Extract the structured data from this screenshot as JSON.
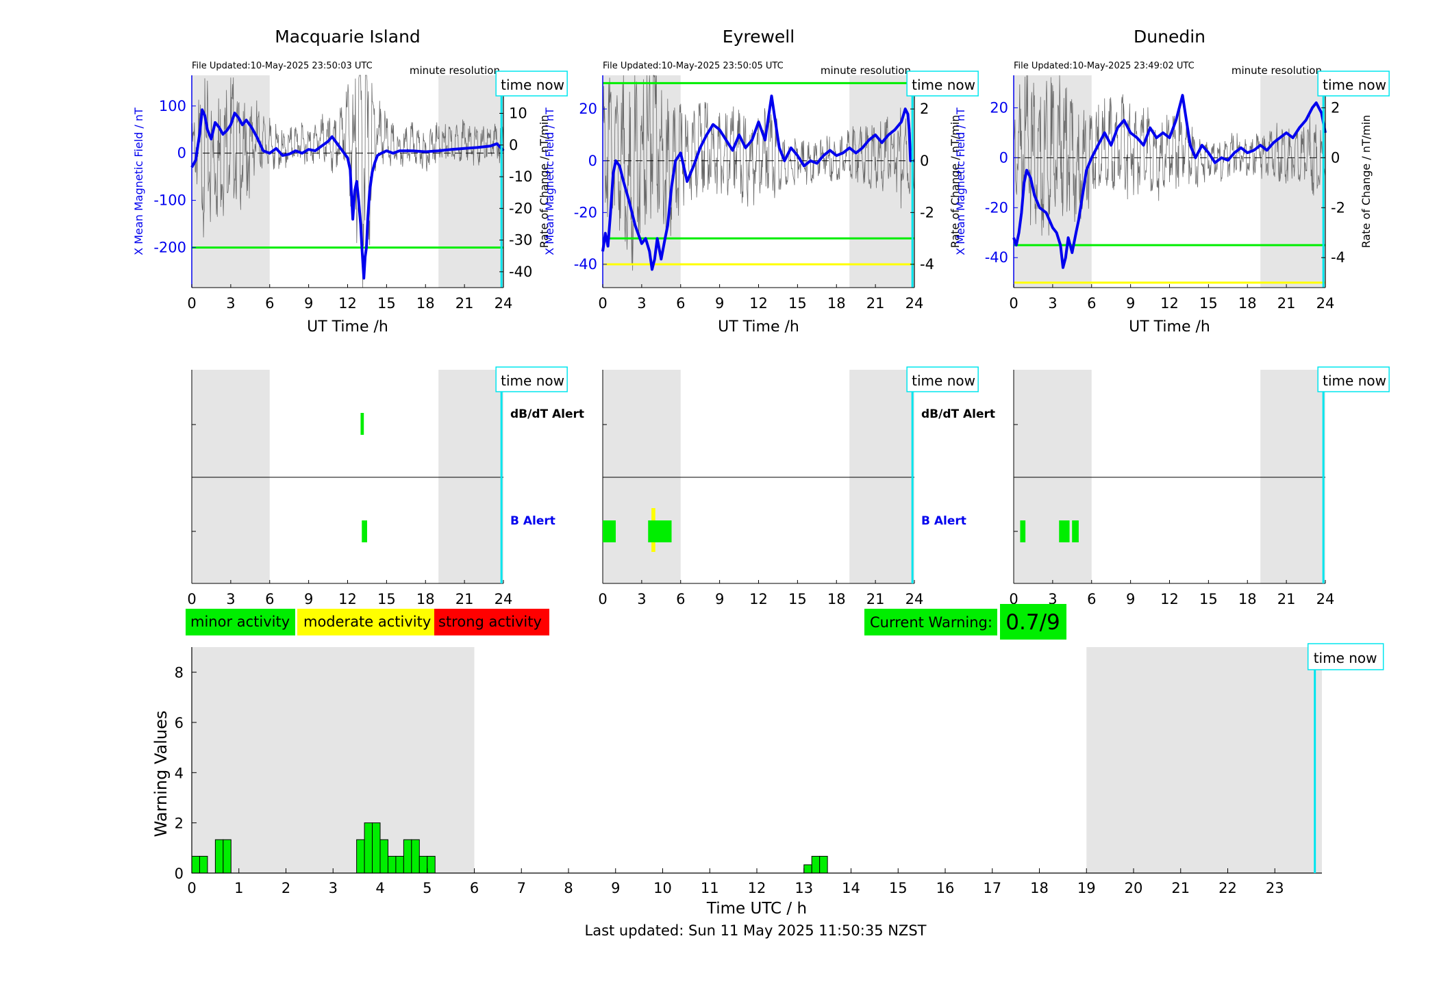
{
  "colors": {
    "field": "#0000ee",
    "rate": "#6a6a6a",
    "green": "#00ee00",
    "yellow": "#ffff00",
    "red": "#ff0000",
    "cyan": "#00e5ee",
    "shade": "#e5e5e5"
  },
  "common": {
    "time_now_label": "time now",
    "minute_resolution_label": "minute resolution",
    "ut_xlabel": "UT Time /h",
    "dbdt_alert_label": "dB/dT Alert",
    "b_alert_label": "B Alert",
    "rate_ylabel": "Rate of Change / nT/min",
    "field_ylabel": "X Mean Magnetic Field / nT"
  },
  "chart_data": [
    {
      "type": "line",
      "title": "Macquarie Island",
      "updated": "File Updated:10-May-2025 23:50:03 UTC",
      "xlim": [
        0,
        24
      ],
      "xticks": [
        0,
        3,
        6,
        9,
        12,
        15,
        18,
        21,
        24
      ],
      "shaded_hours": [
        [
          0,
          6
        ],
        [
          19,
          24
        ]
      ],
      "time_now": 23.85,
      "field_ylim": [
        -285,
        165
      ],
      "field_yticks": [
        100,
        0,
        -100,
        -200
      ],
      "rate_ylim": [
        -45,
        22
      ],
      "rate_yticks": [
        20,
        10,
        0,
        -10,
        -20,
        -30,
        -40
      ],
      "thresholds": [
        {
          "color": "green",
          "value": -200
        }
      ],
      "field_series": {
        "name": "X Mean Magnetic Field",
        "x": [
          0,
          0.3,
          0.6,
          0.8,
          1.0,
          1.2,
          1.5,
          1.8,
          2.1,
          2.4,
          2.7,
          3.0,
          3.3,
          3.6,
          3.9,
          4.2,
          4.6,
          5.0,
          5.5,
          6.0,
          6.5,
          7.0,
          7.5,
          8.0,
          8.5,
          9.0,
          9.5,
          10.0,
          10.5,
          10.8,
          11.2,
          11.6,
          12.0,
          12.2,
          12.4,
          12.55,
          12.7,
          12.85,
          13.0,
          13.1,
          13.25,
          13.35,
          13.45,
          13.55,
          13.7,
          13.9,
          14.1,
          14.3,
          14.6,
          15.0,
          15.5,
          16.0,
          17.0,
          18.0,
          19.0,
          20.0,
          21.0,
          22.0,
          23.0,
          23.5,
          23.85,
          24.0
        ],
        "y": [
          -30,
          -15,
          40,
          92,
          80,
          50,
          30,
          65,
          55,
          40,
          48,
          60,
          85,
          75,
          60,
          70,
          55,
          35,
          5,
          0,
          10,
          -5,
          -2,
          5,
          0,
          8,
          5,
          15,
          25,
          35,
          20,
          5,
          -10,
          -35,
          -140,
          -80,
          -60,
          -100,
          -150,
          -200,
          -265,
          -220,
          -200,
          -140,
          -80,
          -40,
          -20,
          -5,
          0,
          5,
          0,
          5,
          5,
          3,
          5,
          8,
          10,
          12,
          15,
          20,
          10,
          5
        ]
      },
      "rate_series": {
        "name": "Rate of Change",
        "x": [
          0,
          1,
          2,
          3,
          4,
          5,
          6,
          7,
          8,
          9,
          10,
          11,
          12,
          12.5,
          13,
          13.2,
          13.4,
          13.6,
          14,
          15,
          16,
          17,
          18,
          19,
          20,
          21,
          22,
          23,
          24
        ],
        "y": [
          0,
          -5,
          -4,
          3,
          -4,
          2,
          0,
          -2,
          1,
          0,
          2,
          -2,
          8,
          -10,
          15,
          -15,
          18,
          -12,
          5,
          2,
          -3,
          1,
          -2,
          1,
          0,
          2,
          -1,
          1,
          0
        ],
        "amplitude": [
          4,
          12,
          10,
          10,
          8,
          6,
          4,
          3,
          3,
          3,
          4,
          5,
          8,
          12,
          18,
          20,
          20,
          15,
          8,
          4,
          3,
          3,
          3,
          3,
          3,
          3,
          3,
          3,
          3
        ]
      },
      "alerts": {
        "dbdt": [
          {
            "start": 13.0,
            "end": 13.25,
            "level": "minor"
          }
        ],
        "b": [
          {
            "start": 13.1,
            "end": 13.5,
            "level": "minor"
          }
        ]
      }
    },
    {
      "type": "line",
      "title": "Eyrewell",
      "updated": "File Updated:10-May-2025 23:50:05 UTC",
      "xlim": [
        0,
        24
      ],
      "xticks": [
        0,
        3,
        6,
        9,
        12,
        15,
        18,
        21,
        24
      ],
      "shaded_hours": [
        [
          0,
          6
        ],
        [
          19,
          24
        ]
      ],
      "time_now": 23.85,
      "field_ylim": [
        -49,
        33
      ],
      "field_yticks": [
        20,
        0,
        -20,
        -40
      ],
      "rate_ylim": [
        -4.9,
        3.3
      ],
      "rate_yticks": [
        2,
        0,
        -2,
        -4
      ],
      "thresholds": [
        {
          "color": "green",
          "value": 30
        },
        {
          "color": "green",
          "value": -30
        },
        {
          "color": "yellow",
          "value": -40
        }
      ],
      "field_series": {
        "name": "X Mean Magnetic Field",
        "x": [
          0,
          0.2,
          0.4,
          0.6,
          0.8,
          1.0,
          1.3,
          1.6,
          2.0,
          2.5,
          3.0,
          3.3,
          3.6,
          3.8,
          4.0,
          4.2,
          4.5,
          4.8,
          5.0,
          5.3,
          5.6,
          6.0,
          6.5,
          7.0,
          7.5,
          8.0,
          8.5,
          9.0,
          9.5,
          10.0,
          10.5,
          11.0,
          11.5,
          12.0,
          12.5,
          13.0,
          13.3,
          13.6,
          14.0,
          14.5,
          15.0,
          15.5,
          16.0,
          16.5,
          17.0,
          17.5,
          18.0,
          18.5,
          19.0,
          19.5,
          20.0,
          20.5,
          21.0,
          21.5,
          22.0,
          22.5,
          23.0,
          23.3,
          23.5,
          23.6,
          23.7,
          24.0
        ],
        "y": [
          -35,
          -28,
          -33,
          -20,
          -5,
          0,
          -2,
          -8,
          -15,
          -25,
          -32,
          -30,
          -35,
          -42,
          -38,
          -30,
          -38,
          -30,
          -25,
          -10,
          0,
          3,
          -8,
          -2,
          5,
          10,
          14,
          12,
          8,
          4,
          10,
          5,
          8,
          15,
          8,
          25,
          15,
          5,
          0,
          5,
          2,
          -2,
          0,
          -1,
          2,
          4,
          2,
          3,
          5,
          3,
          5,
          8,
          10,
          7,
          10,
          12,
          15,
          20,
          18,
          12,
          0,
          0
        ]
      },
      "rate_series": {
        "name": "Rate of Change",
        "x": [
          0,
          1,
          2,
          3,
          4,
          5,
          6,
          7,
          8,
          9,
          10,
          11,
          12,
          13,
          14,
          15,
          16,
          17,
          18,
          19,
          20,
          21,
          22,
          23,
          24
        ],
        "y": [
          0.3,
          0.8,
          -0.8,
          0.5,
          0.9,
          -0.6,
          0.2,
          0.4,
          0.8,
          0.2,
          0.5,
          -0.3,
          0.3,
          0.5,
          -0.2,
          0.0,
          -0.1,
          0.2,
          0.0,
          0.2,
          0.3,
          0.1,
          0.2,
          0.1,
          0.0
        ],
        "amplitude": [
          1.2,
          1.5,
          1.8,
          1.8,
          1.6,
          1.4,
          1.0,
          0.9,
          1.0,
          0.9,
          0.8,
          0.9,
          0.8,
          1.0,
          0.5,
          0.4,
          0.4,
          0.4,
          0.4,
          0.5,
          0.6,
          0.7,
          0.7,
          0.9,
          0.5
        ]
      },
      "alerts": {
        "dbdt": [],
        "b": [
          {
            "start": 0.0,
            "end": 1.0,
            "level": "minor"
          },
          {
            "start": 3.5,
            "end": 5.3,
            "level": "minor"
          },
          {
            "start": 3.75,
            "end": 4.05,
            "level": "moderate"
          }
        ]
      }
    },
    {
      "type": "line",
      "title": "Dunedin",
      "updated": "File Updated:10-May-2025 23:49:02 UTC",
      "xlim": [
        0,
        24
      ],
      "xticks": [
        0,
        3,
        6,
        9,
        12,
        15,
        18,
        21,
        24
      ],
      "shaded_hours": [
        [
          0,
          6
        ],
        [
          19,
          24
        ]
      ],
      "time_now": 23.85,
      "field_ylim": [
        -52,
        33
      ],
      "field_yticks": [
        20,
        0,
        -20,
        -40
      ],
      "rate_ylim": [
        -5.2,
        3.3
      ],
      "rate_yticks": [
        2,
        0,
        -2,
        -4
      ],
      "thresholds": [
        {
          "color": "green",
          "value": -35
        },
        {
          "color": "yellow",
          "value": -50
        }
      ],
      "field_series": {
        "name": "X Mean Magnetic Field",
        "x": [
          0,
          0.2,
          0.4,
          0.6,
          0.8,
          1.0,
          1.3,
          1.6,
          2.0,
          2.5,
          3.0,
          3.3,
          3.6,
          3.8,
          4.0,
          4.2,
          4.5,
          4.8,
          5.0,
          5.3,
          5.6,
          6.0,
          6.5,
          7.0,
          7.5,
          8.0,
          8.5,
          9.0,
          9.5,
          10.0,
          10.5,
          11.0,
          11.5,
          12.0,
          12.5,
          13.0,
          13.3,
          13.6,
          14.0,
          14.5,
          15.0,
          15.5,
          16.0,
          16.5,
          17.0,
          17.5,
          18.0,
          18.5,
          19.0,
          19.5,
          20.0,
          20.5,
          21.0,
          21.5,
          22.0,
          22.5,
          23.0,
          23.3,
          23.5,
          23.7,
          24.0
        ],
        "y": [
          -32,
          -35,
          -30,
          -22,
          -10,
          -5,
          -8,
          -15,
          -20,
          -22,
          -28,
          -30,
          -35,
          -44,
          -40,
          -32,
          -38,
          -30,
          -25,
          -15,
          -5,
          0,
          5,
          10,
          5,
          12,
          15,
          10,
          8,
          5,
          12,
          8,
          10,
          8,
          15,
          25,
          15,
          5,
          0,
          5,
          2,
          -2,
          0,
          -1,
          2,
          4,
          2,
          3,
          5,
          3,
          6,
          8,
          10,
          8,
          12,
          15,
          20,
          22,
          20,
          18,
          10
        ]
      },
      "rate_series": {
        "name": "Rate of Change",
        "x": [
          0,
          1,
          2,
          3,
          4,
          5,
          6,
          7,
          8,
          9,
          10,
          11,
          12,
          13,
          14,
          15,
          16,
          17,
          18,
          19,
          20,
          21,
          22,
          23,
          24
        ],
        "y": [
          0.3,
          0.6,
          -0.5,
          0.4,
          0.6,
          -0.6,
          0.2,
          0.4,
          0.6,
          0.2,
          0.5,
          -0.2,
          0.3,
          0.5,
          -0.2,
          0.0,
          -0.1,
          0.2,
          0.0,
          0.2,
          0.3,
          0.1,
          0.2,
          0.1,
          0.0
        ],
        "amplitude": [
          1.0,
          1.4,
          1.5,
          1.5,
          1.3,
          1.2,
          0.9,
          0.9,
          1.0,
          0.9,
          0.8,
          0.8,
          0.8,
          0.9,
          0.5,
          0.4,
          0.4,
          0.4,
          0.4,
          0.5,
          0.5,
          0.6,
          0.6,
          0.8,
          0.5
        ]
      },
      "alerts": {
        "dbdt": [],
        "b": [
          {
            "start": 0.5,
            "end": 0.9,
            "level": "minor"
          },
          {
            "start": 3.5,
            "end": 4.3,
            "level": "minor"
          },
          {
            "start": 4.5,
            "end": 5.0,
            "level": "minor"
          }
        ]
      }
    },
    {
      "type": "bar",
      "xlabel": "Time UTC / h",
      "ylabel": "Warning Values",
      "xlim": [
        0,
        24
      ],
      "ylim": [
        0,
        9
      ],
      "xticks": [
        0,
        1,
        2,
        3,
        4,
        5,
        6,
        7,
        8,
        9,
        10,
        11,
        12,
        13,
        14,
        15,
        16,
        17,
        18,
        19,
        20,
        21,
        22,
        23
      ],
      "yticks": [
        0,
        2,
        4,
        6,
        8
      ],
      "shaded_hours": [
        [
          0,
          6
        ],
        [
          19,
          24
        ]
      ],
      "time_now": 23.85,
      "bar_width_hours": 0.1667,
      "bars": [
        {
          "x": 0.0,
          "y": 0.67
        },
        {
          "x": 0.1667,
          "y": 0.67
        },
        {
          "x": 0.5,
          "y": 1.33
        },
        {
          "x": 0.6667,
          "y": 1.33
        },
        {
          "x": 3.5,
          "y": 1.33
        },
        {
          "x": 3.6667,
          "y": 2
        },
        {
          "x": 3.8333,
          "y": 2
        },
        {
          "x": 4.0,
          "y": 1.33
        },
        {
          "x": 4.1667,
          "y": 0.67
        },
        {
          "x": 4.3333,
          "y": 0.67
        },
        {
          "x": 4.5,
          "y": 1.33
        },
        {
          "x": 4.6667,
          "y": 1.33
        },
        {
          "x": 4.8333,
          "y": 0.67
        },
        {
          "x": 5.0,
          "y": 0.67
        },
        {
          "x": 13.0,
          "y": 0.33
        },
        {
          "x": 13.1667,
          "y": 0.67
        },
        {
          "x": 13.3333,
          "y": 0.67
        }
      ]
    }
  ],
  "legend": {
    "minor": "minor activity",
    "moderate": "moderate activity",
    "strong": "strong activity"
  },
  "warning": {
    "label": "Current Warning:",
    "value": "0.7/9"
  },
  "footer": {
    "last_updated": "Last updated: Sun 11 May 2025 11:50:35 NZST"
  }
}
